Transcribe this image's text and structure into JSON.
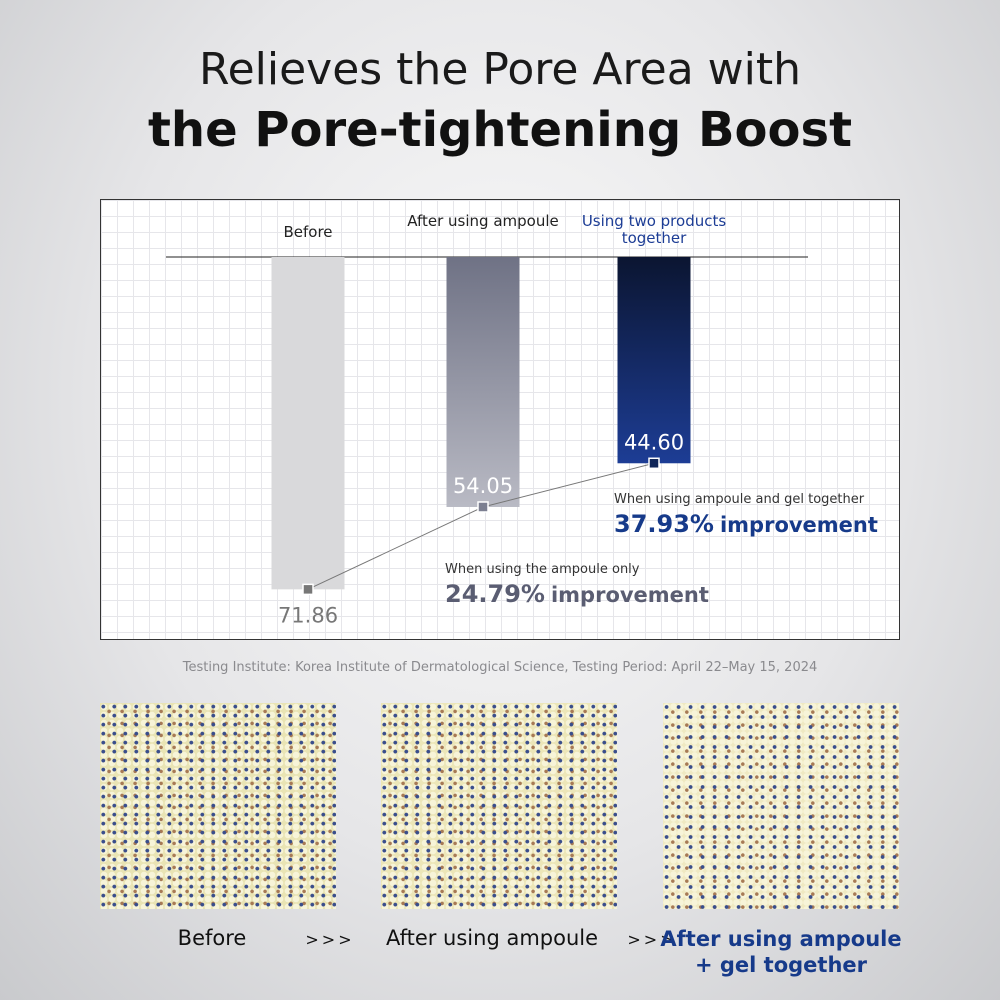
{
  "header": {
    "title_line1": "Relieves the Pore Area with",
    "title_line2": "the Pore-tightening Boost"
  },
  "chart_data": {
    "type": "bar",
    "categories": [
      "Before",
      "After using ampoule",
      "Using two products together"
    ],
    "values": [
      71.86,
      54.05,
      44.6
    ],
    "value_labels": [
      "71.86",
      "54.05",
      "44.60"
    ],
    "colors": [
      "#d9d9db",
      "#7c7f91",
      "#0f2558"
    ],
    "ylim": [
      0,
      80
    ],
    "direction": "down",
    "annotations": [
      {
        "text": "When using the ampoule only",
        "value": "24.79%",
        "suffix": "improvement",
        "color": "#5a5d72"
      },
      {
        "text": "When using ampoule  and gel together",
        "value": "37.93%",
        "suffix": "improvement",
        "color": "#163a8a"
      }
    ]
  },
  "footnote": "Testing Institute: Korea Institute of Dermatological Science, Testing Period: April 22–May 15, 2024",
  "captions": [
    "Before",
    ">>>",
    "After using ampoule",
    ">>>",
    "After using ampoule + gel together"
  ]
}
